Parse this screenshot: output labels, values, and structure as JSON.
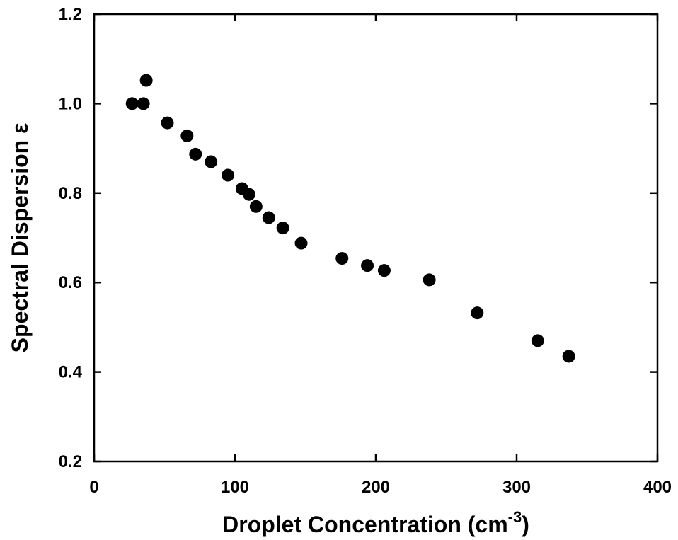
{
  "chart_data": {
    "type": "scatter",
    "title": "",
    "xlabel_main": "Droplet Concentration (cm",
    "xlabel_sup": "-3",
    "xlabel_end": ")",
    "ylabel": "Spectral Dispersion ε",
    "xlim": [
      0,
      400
    ],
    "ylim": [
      0.2,
      1.2
    ],
    "xticks": [
      0,
      100,
      200,
      300,
      400
    ],
    "xtick_labels": [
      "0",
      "100",
      "200",
      "300",
      "400"
    ],
    "yticks": [
      0.2,
      0.4,
      0.6,
      0.8,
      1.0,
      1.2
    ],
    "ytick_labels": [
      "0.2",
      "0.4",
      "0.6",
      "0.8",
      "1.0",
      "1.2"
    ],
    "grid": false,
    "marker_color": "#000000",
    "series": [
      {
        "points": [
          {
            "x": 27,
            "y": 1.0
          },
          {
            "x": 35,
            "y": 1.0
          },
          {
            "x": 37,
            "y": 1.052
          },
          {
            "x": 52,
            "y": 0.957
          },
          {
            "x": 66,
            "y": 0.928
          },
          {
            "x": 72,
            "y": 0.887
          },
          {
            "x": 83,
            "y": 0.87
          },
          {
            "x": 95,
            "y": 0.84
          },
          {
            "x": 105,
            "y": 0.81
          },
          {
            "x": 110,
            "y": 0.797
          },
          {
            "x": 115,
            "y": 0.77
          },
          {
            "x": 124,
            "y": 0.745
          },
          {
            "x": 134,
            "y": 0.722
          },
          {
            "x": 147,
            "y": 0.688
          },
          {
            "x": 176,
            "y": 0.654
          },
          {
            "x": 194,
            "y": 0.638
          },
          {
            "x": 206,
            "y": 0.627
          },
          {
            "x": 238,
            "y": 0.606
          },
          {
            "x": 272,
            "y": 0.532
          },
          {
            "x": 315,
            "y": 0.47
          },
          {
            "x": 337,
            "y": 0.435
          }
        ]
      }
    ]
  }
}
